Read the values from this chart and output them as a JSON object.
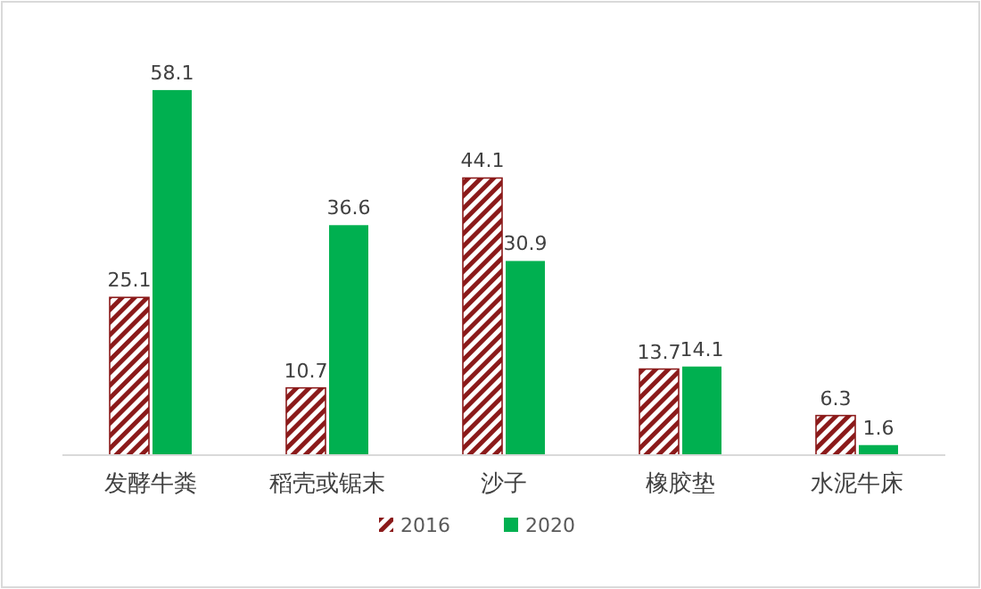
{
  "chart_data": {
    "type": "bar",
    "categories": [
      "发酵牛粪",
      "稻壳或锯末",
      "沙子",
      "橡胶垫",
      "水泥牛床"
    ],
    "series": [
      {
        "name": "2016",
        "color": "#8b1a1a",
        "values": [
          25.1,
          10.7,
          44.1,
          13.7,
          6.3
        ]
      },
      {
        "name": "2020",
        "color": "#00b050",
        "values": [
          58.1,
          36.6,
          30.9,
          14.1,
          1.6
        ]
      }
    ],
    "data_labels": true,
    "legend": "bottom"
  }
}
